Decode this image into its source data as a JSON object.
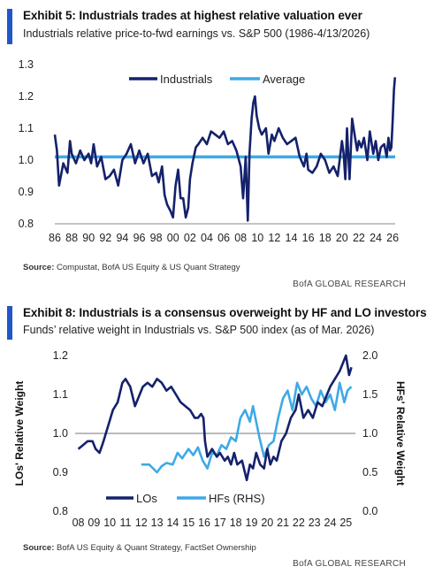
{
  "exhibit1": {
    "title": "Exhibit 5: Industrials trades at highest relative valuation ever",
    "subtitle": "Industrials relative price-to-fwd earnings vs. S&P 500 (1986-4/13/2026)",
    "source_label": "Source:",
    "source_text": " Compustat, BofA US Equity & US Quant Strategy",
    "brand": "BofA GLOBAL RESEARCH"
  },
  "exhibit2": {
    "title": "Exhibit 8: Industrials is a consensus overweight by HF and LO investors",
    "subtitle": "Funds’ relative weight in Industrials vs. S&P 500 index (as of Mar. 2026)",
    "source_label": "Source:",
    "source_text": " BofA US Equity & Quant Strategy, FactSet Ownership",
    "brand": "BofA GLOBAL RESEARCH"
  },
  "colors": {
    "navy": "#14216b",
    "light_blue": "#3fa9e6",
    "accent_bar": "#1f57c8",
    "ref_line": "#777777"
  },
  "chart_data": [
    {
      "type": "line",
      "title": "Exhibit 5: Industrials trades at highest relative valuation ever",
      "xlabel": "",
      "ylabel": "",
      "x_ticks": [
        "86",
        "88",
        "90",
        "92",
        "94",
        "96",
        "98",
        "00",
        "02",
        "04",
        "06",
        "08",
        "10",
        "12",
        "14",
        "16",
        "18",
        "20",
        "22",
        "24",
        "26"
      ],
      "y_ticks": [
        "1.3",
        "1.2",
        "1.1",
        "1.0",
        "0.9",
        "0.8"
      ],
      "xlim": [
        1986,
        2026.3
      ],
      "ylim": [
        0.8,
        1.3
      ],
      "grid": false,
      "legend": "top-center",
      "series": [
        {
          "name": "Industrials",
          "color": "#14216b",
          "x": [
            1986.0,
            1986.25,
            1986.5,
            1987.0,
            1987.5,
            1987.8,
            1988.0,
            1988.5,
            1989.0,
            1989.5,
            1990.0,
            1990.3,
            1990.6,
            1991.0,
            1991.5,
            1992.0,
            1992.5,
            1993.0,
            1993.5,
            1994.0,
            1994.5,
            1995.0,
            1995.5,
            1996.0,
            1996.5,
            1997.0,
            1997.5,
            1998.0,
            1998.3,
            1998.7,
            1999.0,
            1999.3,
            1999.7,
            2000.0,
            2000.3,
            2000.6,
            2000.9,
            2001.2,
            2001.5,
            2001.8,
            2002.0,
            2002.3,
            2002.7,
            2003.0,
            2003.5,
            2004.0,
            2004.5,
            2005.0,
            2005.5,
            2006.0,
            2006.5,
            2007.0,
            2007.5,
            2008.0,
            2008.3,
            2008.6,
            2008.85,
            2009.05,
            2009.3,
            2009.5,
            2009.7,
            2009.9,
            2010.2,
            2010.5,
            2011.0,
            2011.3,
            2011.7,
            2012.0,
            2012.5,
            2013.0,
            2013.5,
            2014.0,
            2014.5,
            2015.0,
            2015.5,
            2015.8,
            2016.0,
            2016.5,
            2017.0,
            2017.5,
            2018.0,
            2018.5,
            2019.0,
            2019.5,
            2020.0,
            2020.2,
            2020.4,
            2020.6,
            2020.9,
            2021.2,
            2021.5,
            2021.8,
            2022.0,
            2022.3,
            2022.6,
            2023.0,
            2023.3,
            2023.7,
            2024.0,
            2024.3,
            2024.6,
            2025.0,
            2025.3,
            2025.5,
            2025.7,
            2025.85,
            2026.0,
            2026.15,
            2026.28
          ],
          "y": [
            1.08,
            1.03,
            0.92,
            0.99,
            0.96,
            1.06,
            1.02,
            0.99,
            1.03,
            1.0,
            1.02,
            0.99,
            1.05,
            0.98,
            1.01,
            0.94,
            0.95,
            0.97,
            0.92,
            1.0,
            1.02,
            1.05,
            0.99,
            1.03,
            0.99,
            1.02,
            0.95,
            0.96,
            0.93,
            0.98,
            0.89,
            0.86,
            0.84,
            0.82,
            0.92,
            0.97,
            0.88,
            0.88,
            0.82,
            0.85,
            0.94,
            0.99,
            1.04,
            1.05,
            1.07,
            1.05,
            1.09,
            1.08,
            1.07,
            1.09,
            1.05,
            1.06,
            1.03,
            0.98,
            0.88,
            1.01,
            0.81,
            1.02,
            1.13,
            1.18,
            1.2,
            1.14,
            1.1,
            1.08,
            1.1,
            1.02,
            1.08,
            1.06,
            1.1,
            1.07,
            1.05,
            1.06,
            1.07,
            1.01,
            0.98,
            1.02,
            0.97,
            0.96,
            0.98,
            1.02,
            1.0,
            0.96,
            0.98,
            0.95,
            1.06,
            1.02,
            0.94,
            1.1,
            0.94,
            1.13,
            1.08,
            1.03,
            1.06,
            1.04,
            1.07,
            1.0,
            1.09,
            1.02,
            1.06,
            1.0,
            1.04,
            1.05,
            1.01,
            1.07,
            1.03,
            1.04,
            1.12,
            1.22,
            1.26
          ]
        },
        {
          "name": "Average",
          "color": "#3fa9e6",
          "x": [
            1986,
            2026.3
          ],
          "y": [
            1.01,
            1.01
          ]
        }
      ]
    },
    {
      "type": "line",
      "title": "Exhibit 8: Industrials is a consensus overweight by HF and LO investors",
      "xlabel": "",
      "ylabel": "LOs' Relative Weight",
      "y2label": "HFs' Relative Weight",
      "x_ticks": [
        "08",
        "09",
        "10",
        "11",
        "12",
        "13",
        "14",
        "15",
        "16",
        "17",
        "18",
        "19",
        "20",
        "21",
        "22",
        "23",
        "24",
        "25"
      ],
      "y_ticks": [
        "1.2",
        "1.1",
        "1.0",
        "0.9",
        "0.8"
      ],
      "y2_ticks": [
        "2.0",
        "1.5",
        "1.0",
        "0.5",
        "0.0"
      ],
      "xlim": [
        2007.8,
        2025.6
      ],
      "ylim": [
        0.8,
        1.2
      ],
      "y2lim": [
        0.0,
        2.0
      ],
      "reference_line_y": 1.0,
      "grid": false,
      "legend": "bottom-left",
      "series": [
        {
          "name": "LOs",
          "color": "#14216b",
          "axis": "left",
          "x": [
            2008.0,
            2008.3,
            2008.6,
            2008.9,
            2009.1,
            2009.35,
            2009.6,
            2009.9,
            2010.2,
            2010.5,
            2010.8,
            2011.0,
            2011.3,
            2011.6,
            2011.9,
            2012.1,
            2012.4,
            2012.7,
            2013.0,
            2013.3,
            2013.6,
            2013.9,
            2014.2,
            2014.5,
            2014.8,
            2015.1,
            2015.4,
            2015.6,
            2015.8,
            2015.95,
            2016.05,
            2016.2,
            2016.5,
            2016.8,
            2017.0,
            2017.3,
            2017.5,
            2017.7,
            2017.9,
            2018.1,
            2018.4,
            2018.7,
            2018.9,
            2019.1,
            2019.3,
            2019.55,
            2019.8,
            2020.0,
            2020.2,
            2020.4,
            2020.6,
            2020.9,
            2021.2,
            2021.5,
            2021.8,
            2022.0,
            2022.3,
            2022.6,
            2022.9,
            2023.2,
            2023.5,
            2023.8,
            2024.0,
            2024.3,
            2024.6,
            2024.8,
            2025.0,
            2025.2,
            2025.35
          ],
          "y": [
            0.96,
            0.97,
            0.98,
            0.98,
            0.96,
            0.95,
            0.98,
            1.02,
            1.06,
            1.08,
            1.13,
            1.14,
            1.12,
            1.07,
            1.1,
            1.12,
            1.13,
            1.12,
            1.14,
            1.13,
            1.11,
            1.12,
            1.1,
            1.08,
            1.07,
            1.06,
            1.04,
            1.04,
            1.05,
            1.04,
            0.98,
            0.94,
            0.96,
            0.94,
            0.95,
            0.93,
            0.94,
            0.92,
            0.95,
            0.92,
            0.93,
            0.88,
            0.92,
            0.91,
            0.95,
            0.92,
            0.91,
            0.96,
            0.92,
            0.94,
            0.93,
            0.98,
            1.0,
            1.04,
            1.06,
            1.1,
            1.04,
            1.06,
            1.04,
            1.08,
            1.07,
            1.1,
            1.12,
            1.14,
            1.16,
            1.18,
            1.2,
            1.15,
            1.17
          ]
        },
        {
          "name": "HFs (RHS)",
          "color": "#3fa9e6",
          "axis": "right",
          "x": [
            2012.0,
            2012.5,
            2013.0,
            2013.3,
            2013.6,
            2014.0,
            2014.3,
            2014.6,
            2015.0,
            2015.3,
            2015.6,
            2015.9,
            2016.2,
            2016.5,
            2016.8,
            2017.1,
            2017.4,
            2017.7,
            2018.0,
            2018.3,
            2018.6,
            2018.9,
            2019.1,
            2019.3,
            2019.5,
            2019.8,
            2020.1,
            2020.4,
            2020.7,
            2021.0,
            2021.3,
            2021.6,
            2021.9,
            2022.2,
            2022.5,
            2022.8,
            2023.1,
            2023.4,
            2023.7,
            2024.0,
            2024.3,
            2024.6,
            2024.9,
            2025.1,
            2025.35
          ],
          "y": [
            0.6,
            0.6,
            0.5,
            0.58,
            0.62,
            0.6,
            0.75,
            0.68,
            0.8,
            0.72,
            0.82,
            0.65,
            0.55,
            0.75,
            0.72,
            0.85,
            0.8,
            0.95,
            0.9,
            1.2,
            1.3,
            1.15,
            1.35,
            1.15,
            0.95,
            0.7,
            0.85,
            0.9,
            1.2,
            1.45,
            1.55,
            1.3,
            1.65,
            1.5,
            1.6,
            1.45,
            1.35,
            1.55,
            1.4,
            1.5,
            1.3,
            1.65,
            1.4,
            1.55,
            1.6
          ]
        }
      ]
    }
  ]
}
